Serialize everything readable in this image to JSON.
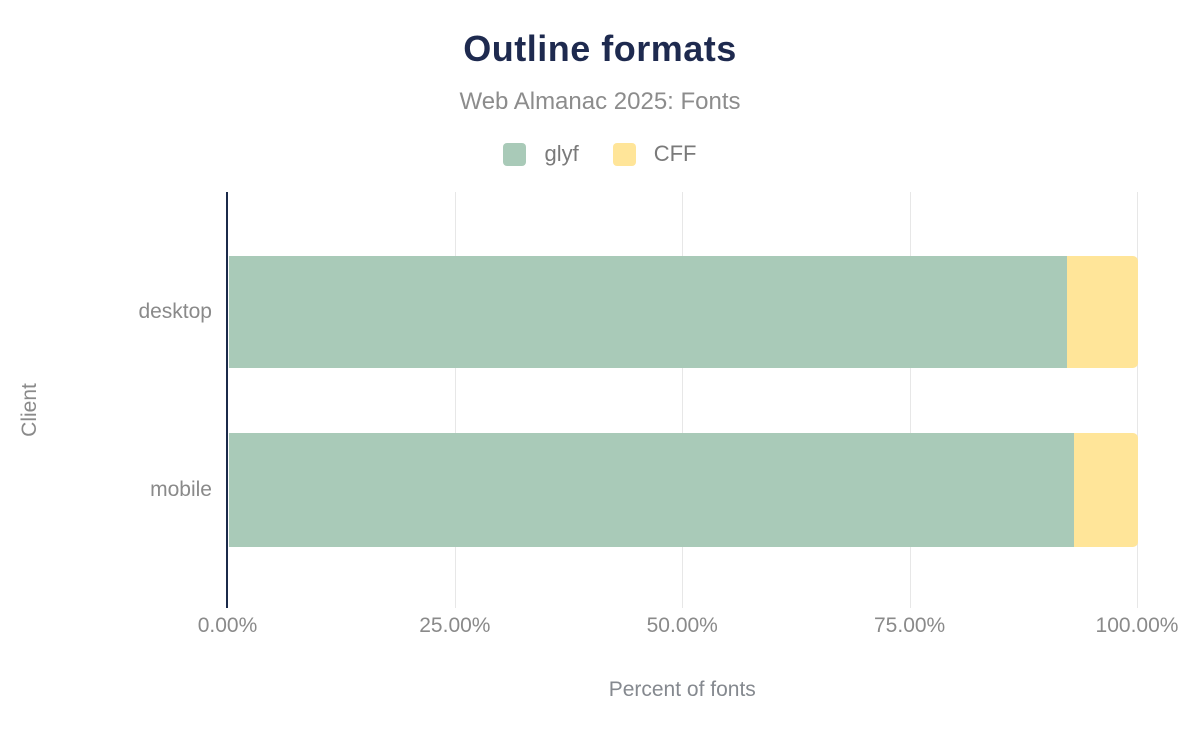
{
  "chart_data": {
    "type": "bar",
    "orientation": "horizontal",
    "stacked": true,
    "title": "Outline formats",
    "subtitle": "Web Almanac 2025: Fonts",
    "categories": [
      "desktop",
      "mobile"
    ],
    "series": [
      {
        "name": "glyf",
        "color": "#a9cab8",
        "values": [
          92.2,
          93.0
        ]
      },
      {
        "name": "CFF",
        "color": "#ffe599",
        "values": [
          7.8,
          7.0
        ]
      }
    ],
    "xlabel": "Percent of fonts",
    "ylabel": "Client",
    "xlim": [
      0,
      100
    ],
    "xticks": [
      {
        "value": 0,
        "label": "0.00%"
      },
      {
        "value": 25,
        "label": "25.00%"
      },
      {
        "value": 50,
        "label": "50.00%"
      },
      {
        "value": 75,
        "label": "75.00%"
      },
      {
        "value": 100,
        "label": "100.00%"
      }
    ],
    "grid": true,
    "legend_position": "top"
  },
  "colors": {
    "title": "#1e2a4f",
    "axis_line": "#1b2a4a",
    "grid_line": "#e7e7e7",
    "text_gray": "#8a8a8a",
    "legend_text": "#7a7a7a",
    "background": "#ffffff"
  }
}
